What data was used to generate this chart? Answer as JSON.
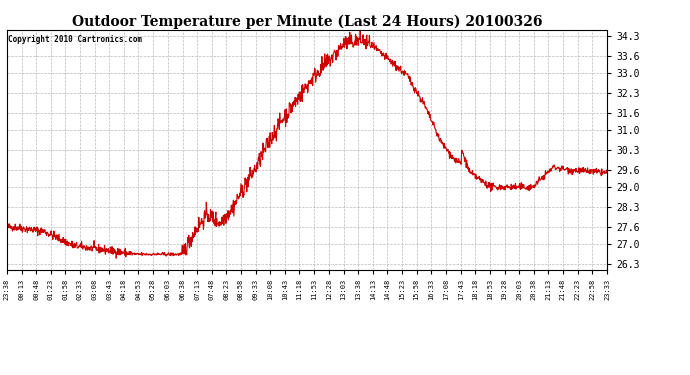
{
  "title": "Outdoor Temperature per Minute (Last 24 Hours) 20100326",
  "copyright": "Copyright 2010 Cartronics.com",
  "line_color": "#cc0000",
  "background_color": "#ffffff",
  "grid_color": "#aaaaaa",
  "yticks": [
    26.3,
    27.0,
    27.6,
    28.3,
    29.0,
    29.6,
    30.3,
    31.0,
    31.6,
    32.3,
    33.0,
    33.6,
    34.3
  ],
  "ylim": [
    26.1,
    34.5
  ],
  "xtick_labels": [
    "23:38",
    "00:13",
    "00:48",
    "01:23",
    "01:58",
    "02:33",
    "03:08",
    "03:43",
    "04:18",
    "04:53",
    "05:28",
    "06:03",
    "06:38",
    "07:13",
    "07:48",
    "08:23",
    "08:58",
    "09:33",
    "10:08",
    "10:43",
    "11:18",
    "11:53",
    "12:28",
    "13:03",
    "13:38",
    "14:13",
    "14:48",
    "15:23",
    "15:58",
    "16:33",
    "17:08",
    "17:43",
    "18:18",
    "18:53",
    "19:28",
    "20:03",
    "20:38",
    "21:13",
    "21:48",
    "22:23",
    "22:58",
    "23:33"
  ]
}
